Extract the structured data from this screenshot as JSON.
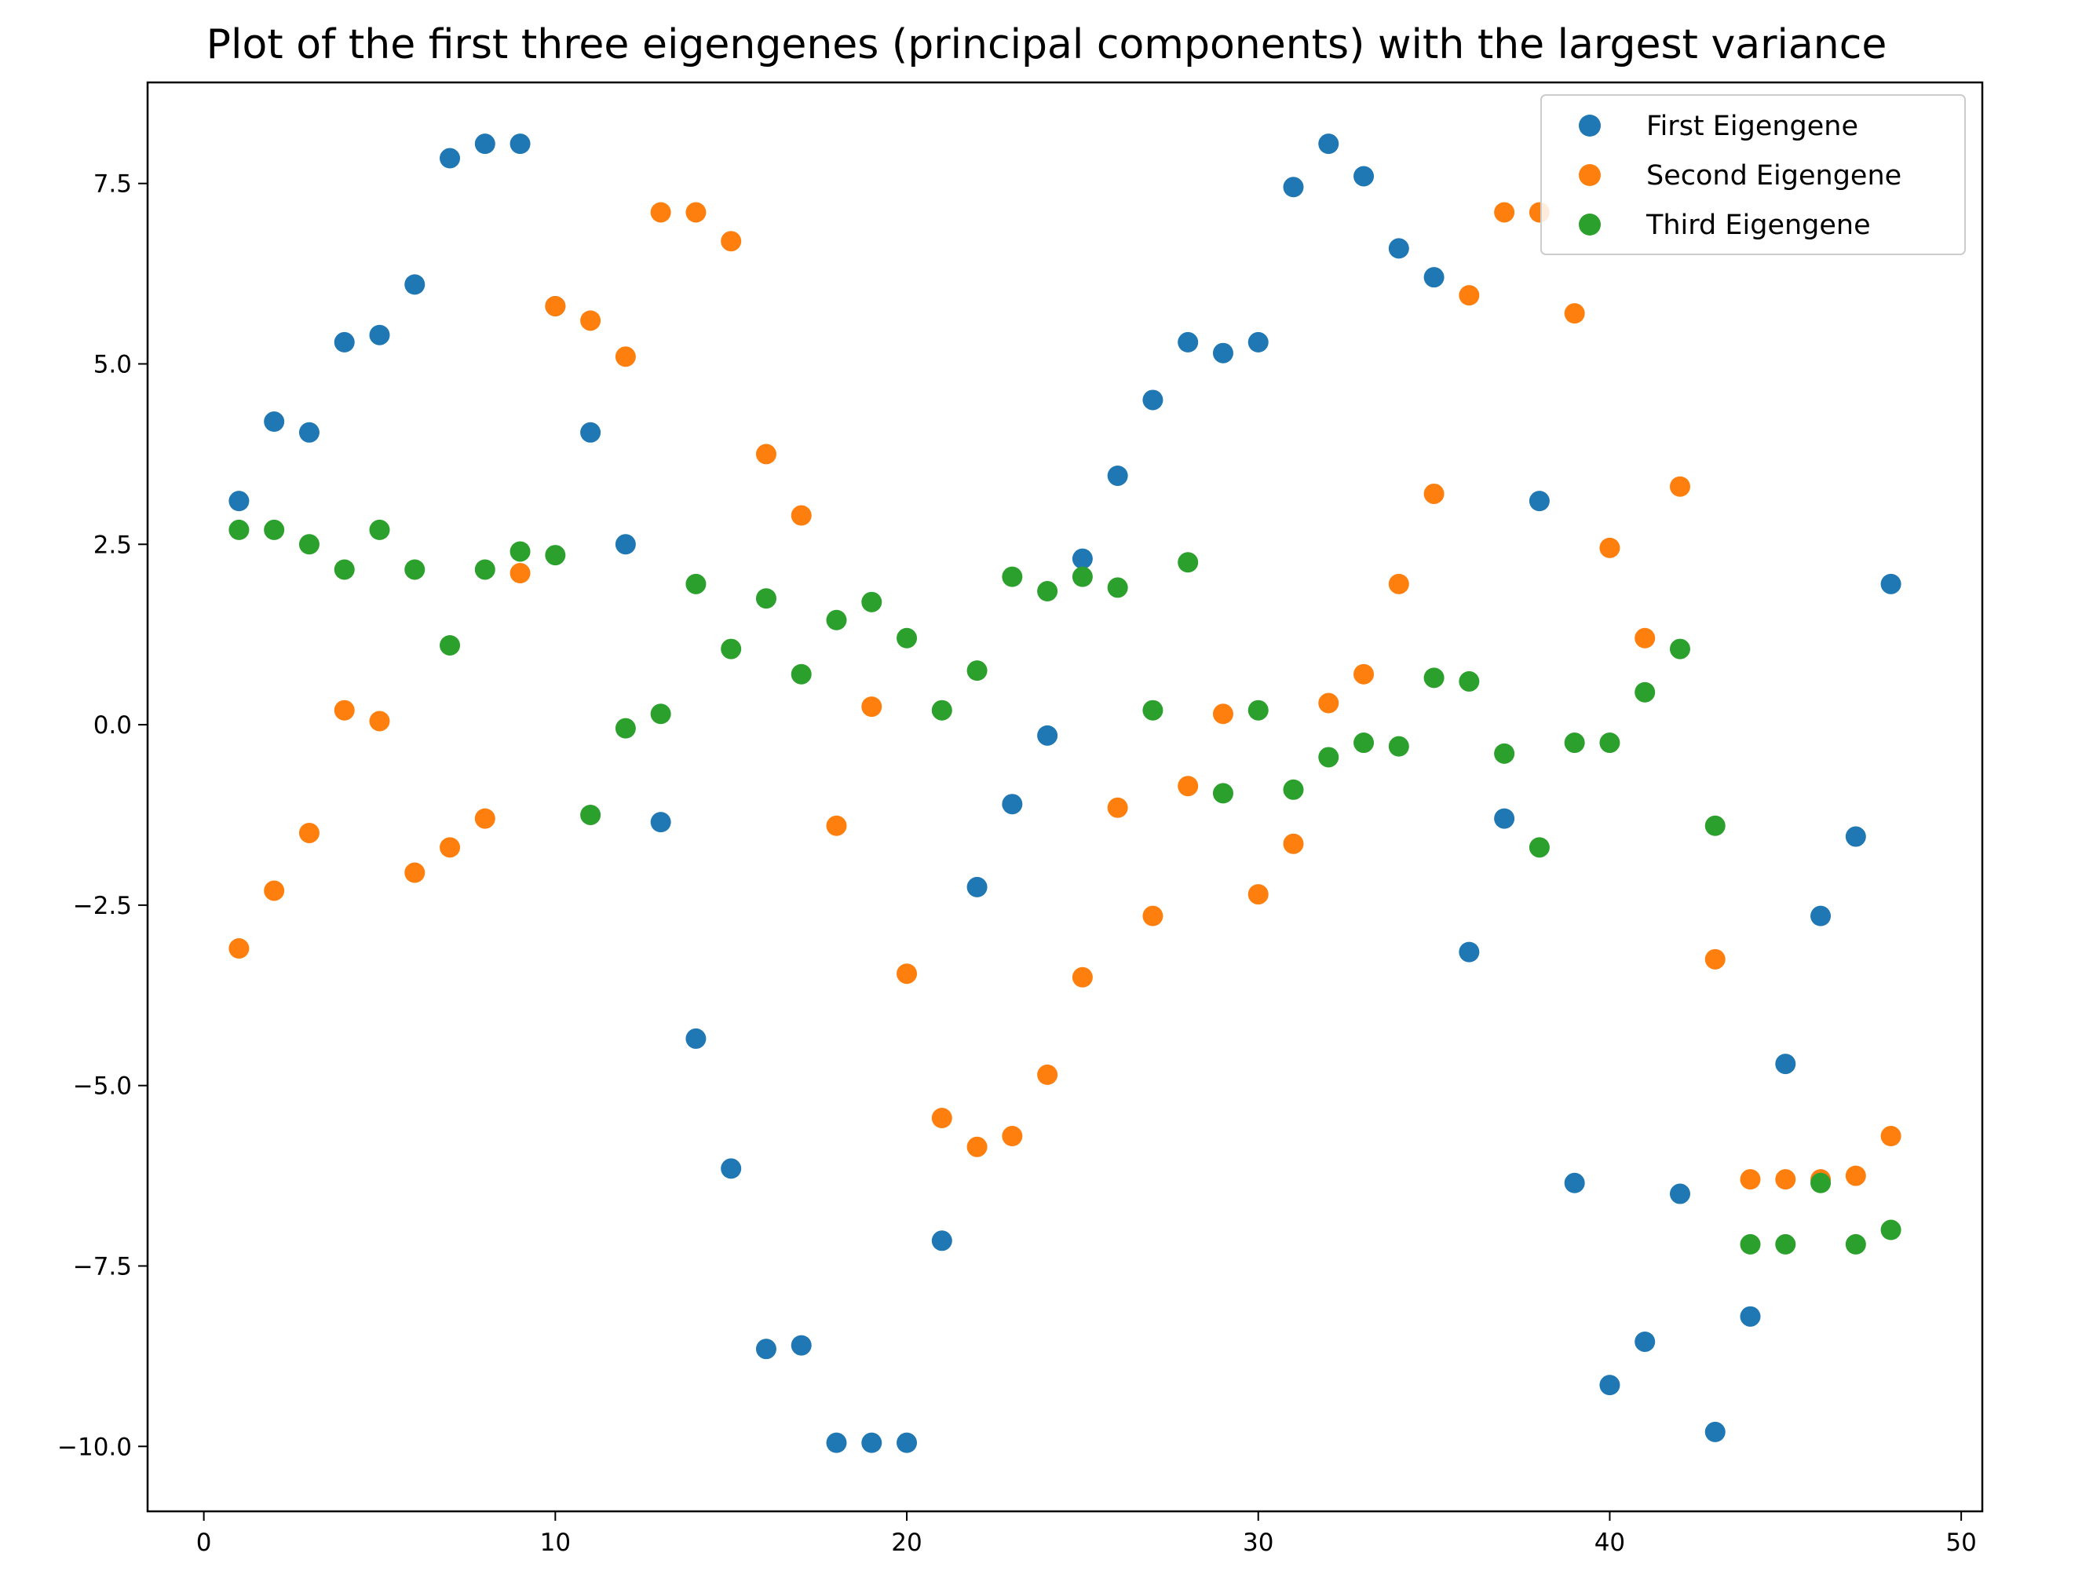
{
  "chart_data": {
    "type": "scatter",
    "title": "Plot of the first three eigengenes (principal components) with the largest variance",
    "xlabel": "",
    "ylabel": "",
    "xlim": [
      -1.6,
      50.6
    ],
    "ylim": [
      -10.9,
      8.9
    ],
    "xticks": [
      0,
      10,
      20,
      30,
      40,
      50
    ],
    "xtick_labels": [
      "0",
      "10",
      "20",
      "30",
      "40",
      "50"
    ],
    "yticks": [
      7.5,
      5.0,
      2.5,
      0.0,
      -2.5,
      -5.0,
      -7.5,
      -10.0
    ],
    "ytick_labels": [
      "7.5",
      "5.0",
      "2.5",
      "0.0",
      "−2.5",
      "−5.0",
      "−7.5",
      "−10.0"
    ],
    "grid": false,
    "legend_position": "top-right",
    "x": [
      1,
      2,
      3,
      4,
      5,
      6,
      7,
      8,
      9,
      10,
      11,
      12,
      13,
      14,
      15,
      16,
      17,
      18,
      19,
      20,
      21,
      22,
      23,
      24,
      25,
      26,
      27,
      28,
      29,
      30,
      31,
      32,
      33,
      34,
      35,
      36,
      37,
      38,
      39,
      40,
      41,
      42,
      43,
      44,
      45,
      46,
      47,
      48
    ],
    "series": [
      {
        "name": "First Eigengene",
        "color": "#1f77b4",
        "values": [
          3.1,
          4.2,
          4.05,
          5.3,
          5.4,
          6.1,
          7.85,
          8.05,
          8.05,
          5.8,
          4.05,
          2.5,
          -1.35,
          -4.35,
          -6.15,
          -8.65,
          -8.6,
          -9.95,
          -9.95,
          -9.95,
          -7.15,
          -2.25,
          -1.1,
          -0.15,
          2.3,
          3.45,
          4.5,
          5.3,
          5.15,
          5.3,
          7.45,
          8.05,
          7.6,
          6.6,
          6.2,
          -3.15,
          -1.3,
          3.1,
          -6.35,
          -9.15,
          -8.55,
          -6.5,
          -9.8,
          -8.2,
          -4.7,
          -2.65,
          -1.55,
          1.95
        ]
      },
      {
        "name": "Second Eigengene",
        "color": "#ff7f0e",
        "values": [
          -3.1,
          -2.3,
          -1.5,
          0.2,
          0.05,
          -2.05,
          -1.7,
          -1.3,
          2.1,
          5.8,
          5.6,
          5.1,
          7.1,
          7.1,
          6.7,
          3.75,
          2.9,
          -1.4,
          0.25,
          -3.45,
          -5.45,
          -5.85,
          -5.7,
          -4.85,
          -3.5,
          -1.15,
          -2.65,
          -0.85,
          0.15,
          -2.35,
          -1.65,
          0.3,
          0.7,
          1.95,
          3.2,
          5.95,
          7.1,
          7.1,
          5.7,
          2.45,
          1.2,
          3.3,
          -3.25,
          -6.3,
          -6.3,
          -6.3,
          -6.25,
          -5.7
        ]
      },
      {
        "name": "Third Eigengene",
        "color": "#2ca02c",
        "values": [
          2.7,
          2.7,
          2.5,
          2.15,
          2.7,
          2.15,
          1.1,
          2.15,
          2.4,
          2.35,
          -1.25,
          -0.05,
          0.15,
          1.95,
          1.05,
          1.75,
          0.7,
          1.45,
          1.7,
          1.2,
          0.2,
          0.75,
          2.05,
          1.85,
          2.05,
          1.9,
          0.2,
          2.25,
          -0.95,
          0.2,
          -0.9,
          -0.45,
          -0.25,
          -0.3,
          0.65,
          0.6,
          -0.4,
          -1.7,
          -0.25,
          -0.25,
          0.45,
          1.05,
          -1.4,
          -7.2,
          -7.2,
          -6.35,
          -7.2,
          -7.0
        ]
      }
    ]
  }
}
